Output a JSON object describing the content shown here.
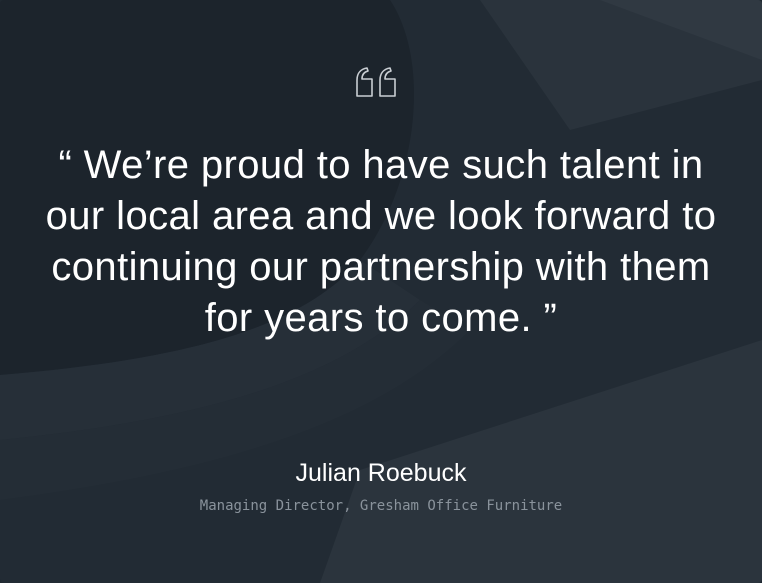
{
  "testimonial": {
    "quote": "“ We’re proud to have such talent in our local area and we look forward to continuing our partnership with them for years to come. ”",
    "author_name": "Julian Roebuck",
    "author_role": "Managing Director, Gresham Office Furniture"
  },
  "icons": {
    "quote_icon": "quote-marks-icon"
  },
  "colors": {
    "background": "#222b34",
    "text": "#ffffff",
    "muted_text": "#8a939c"
  }
}
